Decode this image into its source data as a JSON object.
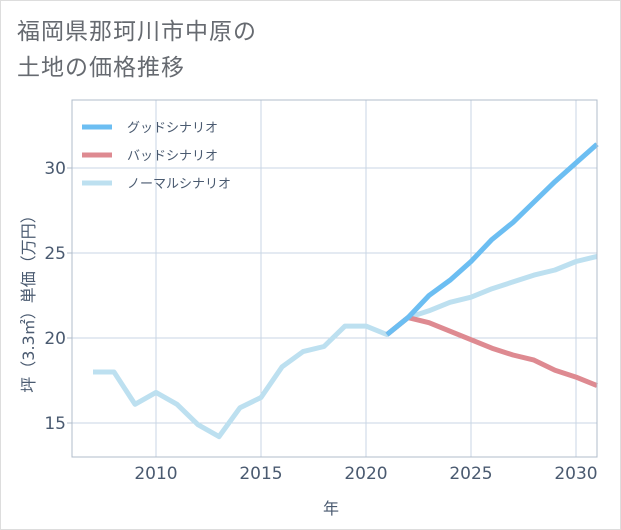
{
  "title_lines": [
    "福岡県那珂川市中原の",
    "土地の価格推移"
  ],
  "chart_data": {
    "type": "line",
    "title": "福岡県那珂川市中原の土地の価格推移",
    "xlabel": "年",
    "ylabel": "坪（3.3㎡）単価（万円）",
    "xlim": [
      2006,
      2031
    ],
    "ylim": [
      13,
      34
    ],
    "xticks": [
      2010,
      2015,
      2020,
      2025,
      2030
    ],
    "yticks": [
      15,
      20,
      25,
      30
    ],
    "grid": true,
    "legend_position": "top-left",
    "series": [
      {
        "name": "グッドシナリオ",
        "color": "#6cbef2",
        "x": [
          2021,
          2022,
          2023,
          2024,
          2025,
          2026,
          2027,
          2028,
          2029,
          2030,
          2031
        ],
        "y": [
          20.2,
          21.2,
          22.5,
          23.4,
          24.5,
          25.8,
          26.8,
          28.0,
          29.2,
          30.3,
          31.4
        ]
      },
      {
        "name": "バッドシナリオ",
        "color": "#de8a91",
        "x": [
          2021,
          2022,
          2023,
          2024,
          2025,
          2026,
          2027,
          2028,
          2029,
          2030,
          2031
        ],
        "y": [
          20.2,
          21.2,
          20.9,
          20.4,
          19.9,
          19.4,
          19.0,
          18.7,
          18.1,
          17.7,
          17.2
        ]
      },
      {
        "name": "ノーマルシナリオ",
        "color": "#bde0f0",
        "x": [
          2007,
          2008,
          2009,
          2010,
          2011,
          2012,
          2013,
          2014,
          2015,
          2016,
          2017,
          2018,
          2019,
          2020,
          2021,
          2022,
          2023,
          2024,
          2025,
          2026,
          2027,
          2028,
          2029,
          2030,
          2031
        ],
        "y": [
          18.0,
          18.0,
          16.1,
          16.8,
          16.1,
          14.9,
          14.2,
          15.9,
          16.5,
          18.3,
          19.2,
          19.5,
          20.7,
          20.7,
          20.2,
          21.2,
          21.6,
          22.1,
          22.4,
          22.9,
          23.3,
          23.7,
          24.0,
          24.5,
          24.8
        ]
      }
    ]
  }
}
